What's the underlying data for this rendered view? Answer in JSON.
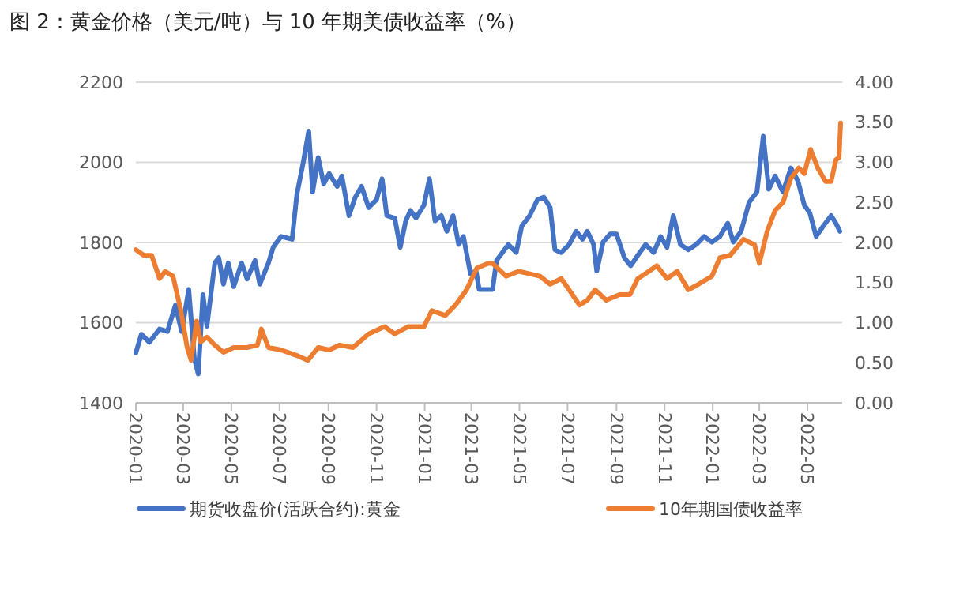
{
  "chart_data": {
    "type": "line",
    "title": "图 2：黄金价格（美元/吨）与 10 年期美债收益率（%）",
    "xlim": [
      "2020-01-01",
      "2022-06-14"
    ],
    "xticks": [
      {
        "value": "2020-01-01",
        "label": "2020-01"
      },
      {
        "value": "2020-03-01",
        "label": "2020-03"
      },
      {
        "value": "2020-05-01",
        "label": "2020-05"
      },
      {
        "value": "2020-07-01",
        "label": "2020-07"
      },
      {
        "value": "2020-09-01",
        "label": "2020-09"
      },
      {
        "value": "2020-11-01",
        "label": "2020-11"
      },
      {
        "value": "2021-01-01",
        "label": "2021-01"
      },
      {
        "value": "2021-03-01",
        "label": "2021-03"
      },
      {
        "value": "2021-05-01",
        "label": "2021-05"
      },
      {
        "value": "2021-07-01",
        "label": "2021-07"
      },
      {
        "value": "2021-09-01",
        "label": "2021-09"
      },
      {
        "value": "2021-11-01",
        "label": "2021-11"
      },
      {
        "value": "2022-01-01",
        "label": "2022-01"
      },
      {
        "value": "2022-03-01",
        "label": "2022-03"
      },
      {
        "value": "2022-05-01",
        "label": "2022-05"
      }
    ],
    "ylim": [
      1400,
      2200
    ],
    "yticks": [
      1400,
      1600,
      1800,
      2000,
      2200
    ],
    "y2lim": [
      0,
      4
    ],
    "y2ticks": [
      {
        "value": 0,
        "label": "0.00"
      },
      {
        "value": 0.5,
        "label": "0.50"
      },
      {
        "value": 1,
        "label": "1.00"
      },
      {
        "value": 1.5,
        "label": "1.50"
      },
      {
        "value": 2,
        "label": "2.00"
      },
      {
        "value": 2.5,
        "label": "2.50"
      },
      {
        "value": 3,
        "label": "3.00"
      },
      {
        "value": 3.5,
        "label": "3.50"
      },
      {
        "value": 4,
        "label": "4.00"
      }
    ],
    "grid": "y",
    "legend": "bottom",
    "marker": "none",
    "line_style": "solid",
    "series": [
      {
        "name": "期货收盘价(活跃合约):黄金",
        "color": "#4472c4",
        "x": [
          "2020-01-01",
          "2020-01-08",
          "2020-01-18",
          "2020-01-31",
          "2020-02-10",
          "2020-02-20",
          "2020-02-28",
          "2020-03-08",
          "2020-03-15",
          "2020-03-20",
          "2020-03-26",
          "2020-03-31",
          "2020-04-10",
          "2020-04-15",
          "2020-04-21",
          "2020-04-27",
          "2020-05-04",
          "2020-05-14",
          "2020-05-21",
          "2020-05-31",
          "2020-06-06",
          "2020-06-17",
          "2020-06-23",
          "2020-07-03",
          "2020-07-17",
          "2020-07-23",
          "2020-07-31",
          "2020-08-07",
          "2020-08-12",
          "2020-08-19",
          "2020-08-26",
          "2020-09-02",
          "2020-09-12",
          "2020-09-18",
          "2020-09-27",
          "2020-10-05",
          "2020-10-13",
          "2020-10-22",
          "2020-11-01",
          "2020-11-08",
          "2020-11-14",
          "2020-11-24",
          "2020-12-01",
          "2020-12-08",
          "2020-12-14",
          "2020-12-21",
          "2020-12-31",
          "2021-01-07",
          "2021-01-14",
          "2021-01-22",
          "2021-01-29",
          "2021-02-06",
          "2021-02-13",
          "2021-02-19",
          "2021-02-28",
          "2021-03-07",
          "2021-03-11",
          "2021-03-28",
          "2021-04-02",
          "2021-04-17",
          "2021-04-27",
          "2021-05-04",
          "2021-05-14",
          "2021-05-24",
          "2021-06-01",
          "2021-06-09",
          "2021-06-15",
          "2021-06-23",
          "2021-07-03",
          "2021-07-12",
          "2021-07-20",
          "2021-07-26",
          "2021-08-03",
          "2021-08-07",
          "2021-08-15",
          "2021-08-24",
          "2021-09-01",
          "2021-09-11",
          "2021-09-19",
          "2021-09-28",
          "2021-10-08",
          "2021-10-18",
          "2021-10-27",
          "2021-11-04",
          "2021-11-12",
          "2021-11-21",
          "2021-12-01",
          "2021-12-11",
          "2021-12-21",
          "2021-12-31",
          "2022-01-10",
          "2022-01-20",
          "2022-01-27",
          "2022-02-06",
          "2022-02-16",
          "2022-02-26",
          "2022-03-06",
          "2022-03-13",
          "2022-03-21",
          "2022-03-31",
          "2022-04-10",
          "2022-04-19",
          "2022-04-27",
          "2022-05-04",
          "2022-05-12",
          "2022-05-21",
          "2022-05-31",
          "2022-06-06",
          "2022-06-11"
        ],
        "values": [
          1525,
          1571,
          1551,
          1584,
          1578,
          1643,
          1578,
          1683,
          1512,
          1472,
          1670,
          1591,
          1749,
          1762,
          1696,
          1749,
          1690,
          1749,
          1709,
          1755,
          1696,
          1749,
          1788,
          1815,
          1808,
          1920,
          1999,
          2078,
          1926,
          2012,
          1946,
          1972,
          1940,
          1966,
          1867,
          1913,
          1940,
          1887,
          1907,
          1959,
          1867,
          1861,
          1788,
          1854,
          1880,
          1861,
          1893,
          1959,
          1854,
          1867,
          1828,
          1867,
          1795,
          1815,
          1722,
          1729,
          1683,
          1683,
          1755,
          1795,
          1775,
          1841,
          1867,
          1907,
          1913,
          1887,
          1782,
          1775,
          1795,
          1828,
          1808,
          1828,
          1795,
          1729,
          1801,
          1821,
          1821,
          1762,
          1742,
          1768,
          1795,
          1775,
          1815,
          1788,
          1867,
          1795,
          1782,
          1795,
          1815,
          1801,
          1815,
          1848,
          1801,
          1828,
          1900,
          1926,
          2065,
          1933,
          1966,
          1926,
          1986,
          1953,
          1893,
          1874,
          1815,
          1841,
          1867,
          1848,
          1828
        ]
      },
      {
        "name": "10年期国债收益率",
        "color": "#ed7d31",
        "axis": "y2",
        "x": [
          "2020-01-01",
          "2020-01-11",
          "2020-01-21",
          "2020-01-31",
          "2020-02-07",
          "2020-02-17",
          "2020-02-27",
          "2020-03-06",
          "2020-03-11",
          "2020-03-18",
          "2020-03-23",
          "2020-03-31",
          "2020-04-10",
          "2020-04-21",
          "2020-05-04",
          "2020-05-21",
          "2020-06-03",
          "2020-06-08",
          "2020-06-17",
          "2020-07-03",
          "2020-07-23",
          "2020-08-06",
          "2020-08-19",
          "2020-09-02",
          "2020-09-15",
          "2020-10-02",
          "2020-10-22",
          "2020-11-11",
          "2020-11-24",
          "2020-12-11",
          "2020-12-31",
          "2021-01-10",
          "2021-01-27",
          "2021-02-09",
          "2021-02-23",
          "2021-03-08",
          "2021-03-22",
          "2021-03-28",
          "2021-04-14",
          "2021-04-30",
          "2021-05-14",
          "2021-05-27",
          "2021-06-09",
          "2021-06-23",
          "2021-07-03",
          "2021-07-16",
          "2021-07-26",
          "2021-08-05",
          "2021-08-19",
          "2021-09-05",
          "2021-09-18",
          "2021-09-28",
          "2021-10-12",
          "2021-10-22",
          "2021-11-04",
          "2021-11-17",
          "2021-12-01",
          "2021-12-14",
          "2021-12-31",
          "2022-01-10",
          "2022-01-23",
          "2022-02-09",
          "2022-02-23",
          "2022-03-01",
          "2022-03-11",
          "2022-03-21",
          "2022-03-31",
          "2022-04-10",
          "2022-04-20",
          "2022-04-27",
          "2022-05-05",
          "2022-05-14",
          "2022-05-24",
          "2022-05-31",
          "2022-06-06",
          "2022-06-10",
          "2022-06-12"
        ],
        "values": [
          1.91,
          1.84,
          1.84,
          1.55,
          1.64,
          1.58,
          1.15,
          0.69,
          0.53,
          1.02,
          0.76,
          0.82,
          0.72,
          0.63,
          0.69,
          0.69,
          0.72,
          0.92,
          0.69,
          0.66,
          0.59,
          0.53,
          0.69,
          0.66,
          0.72,
          0.69,
          0.86,
          0.95,
          0.86,
          0.95,
          0.95,
          1.15,
          1.09,
          1.22,
          1.41,
          1.68,
          1.74,
          1.74,
          1.58,
          1.64,
          1.61,
          1.58,
          1.48,
          1.55,
          1.41,
          1.22,
          1.28,
          1.41,
          1.28,
          1.35,
          1.35,
          1.55,
          1.64,
          1.71,
          1.55,
          1.64,
          1.41,
          1.48,
          1.58,
          1.81,
          1.84,
          2.04,
          1.97,
          1.74,
          2.14,
          2.4,
          2.5,
          2.8,
          2.93,
          2.86,
          3.16,
          2.93,
          2.76,
          2.76,
          3.03,
          3.06,
          3.49
        ]
      }
    ]
  }
}
